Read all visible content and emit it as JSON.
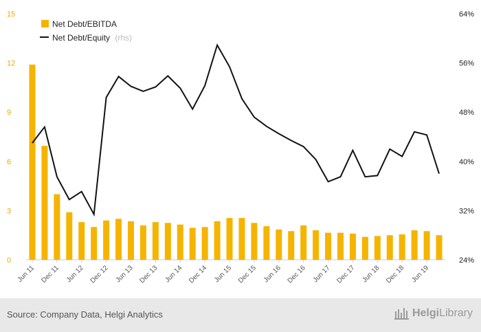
{
  "chart_data": {
    "type": "bar",
    "categories": [
      "Jun 11",
      "Sep 11",
      "Dec 11",
      "Mar 12",
      "Jun 12",
      "Sep 12",
      "Dec 12",
      "Mar 13",
      "Jun 13",
      "Sep 13",
      "Dec 13",
      "Mar 14",
      "Jun 14",
      "Sep 14",
      "Dec 14",
      "Mar 15",
      "Jun 15",
      "Sep 15",
      "Dec 15",
      "Mar 16",
      "Jun 16",
      "Sep 16",
      "Dec 16",
      "Mar 17",
      "Jun 17",
      "Sep 17",
      "Dec 17",
      "Mar 18",
      "Jun 18",
      "Sep 18",
      "Dec 18",
      "Mar 19",
      "Jun 19",
      "Sep 19"
    ],
    "x_tick_labels": [
      "Jun 11",
      "Dec 11",
      "Jun 12",
      "Dec 12",
      "Jun 13",
      "Dec 13",
      "Jun 14",
      "Dec 14",
      "Jun 15",
      "Dec 15",
      "Jun 16",
      "Dec 16",
      "Jun 17",
      "Dec 17",
      "Jun 18",
      "Dec 18",
      "Jun 19"
    ],
    "series": [
      {
        "name": "Net Debt/EBITDA",
        "type": "bar",
        "axis": "left",
        "color": "#f5b400",
        "values": [
          11.9,
          6.95,
          4.0,
          2.9,
          2.3,
          2.0,
          2.4,
          2.5,
          2.35,
          2.1,
          2.3,
          2.25,
          2.15,
          1.95,
          2.0,
          2.35,
          2.55,
          2.55,
          2.25,
          2.05,
          1.85,
          1.75,
          2.1,
          1.8,
          1.65,
          1.65,
          1.6,
          1.4,
          1.45,
          1.5,
          1.55,
          1.8,
          1.75,
          1.5
        ]
      },
      {
        "name": "Net Debt/Equity",
        "type": "line",
        "axis": "right",
        "color": "#111111",
        "values": [
          43.0,
          45.6,
          37.5,
          33.8,
          35.1,
          31.4,
          50.4,
          53.8,
          52.2,
          51.4,
          52.1,
          53.9,
          51.9,
          48.5,
          52.3,
          58.9,
          55.4,
          50.2,
          47.2,
          45.7,
          44.5,
          43.4,
          42.4,
          40.3,
          36.7,
          37.5,
          41.8,
          37.5,
          37.7,
          42.0,
          40.8,
          44.8,
          44.3,
          38.0
        ]
      }
    ],
    "ylim": [
      0,
      15
    ],
    "yticks": [
      "0",
      "3",
      "6",
      "9",
      "12",
      "15"
    ],
    "ylim_right": [
      24,
      64
    ],
    "yticks_right": [
      "24%",
      "32%",
      "40%",
      "48%",
      "56%",
      "64%"
    ],
    "legend": [
      {
        "label": "Net Debt/EBITDA",
        "suffix": ""
      },
      {
        "label": "Net Debt/Equity",
        "suffix": "(rhs)"
      }
    ],
    "legend_position": "top-left",
    "grid": false
  },
  "footer": {
    "source": "Source: Company Data, Helgi Analytics",
    "logo_part1": "Helgi",
    "logo_part2": "Library"
  }
}
